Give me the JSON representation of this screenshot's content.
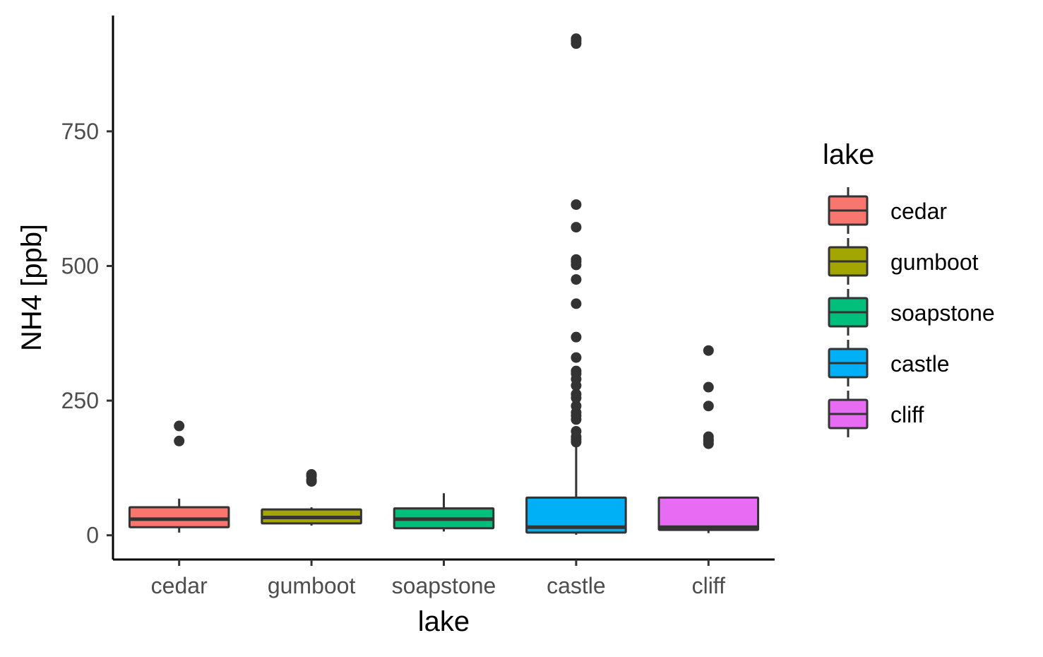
{
  "chart_data": {
    "type": "boxplot",
    "xlabel": "lake",
    "ylabel": "NH4 [ppb]",
    "ylim": [
      -45,
      965
    ],
    "y_ticks": [
      0,
      250,
      500,
      750
    ],
    "y_tick_labels": [
      "0",
      "250",
      "500",
      "750"
    ],
    "grid": false,
    "legend": {
      "title": "lake",
      "position": "right"
    },
    "categories": [
      "cedar",
      "gumboot",
      "soapstone",
      "castle",
      "cliff"
    ],
    "series": [
      {
        "name": "cedar",
        "color": "#F8766D",
        "whisker_low": 5,
        "q1": 15,
        "median": 30,
        "q3": 52,
        "whisker_high": 68,
        "outliers": [
          175,
          203
        ]
      },
      {
        "name": "gumboot",
        "color": "#A3A500",
        "whisker_low": 18,
        "q1": 22,
        "median": 33,
        "q3": 48,
        "whisker_high": 52,
        "outliers": [
          100,
          103,
          110,
          113
        ]
      },
      {
        "name": "soapstone",
        "color": "#00BF7D",
        "whisker_low": 7,
        "q1": 13,
        "median": 30,
        "q3": 50,
        "whisker_high": 78,
        "outliers": []
      },
      {
        "name": "castle",
        "color": "#00B0F6",
        "whisker_low": 1,
        "q1": 5,
        "median": 15,
        "q3": 70,
        "whisker_high": 170,
        "outliers": [
          173,
          178,
          183,
          193,
          215,
          222,
          228,
          240,
          255,
          262,
          278,
          290,
          300,
          305,
          330,
          368,
          430,
          475,
          502,
          508,
          512,
          572,
          614,
          913,
          918,
          922
        ]
      },
      {
        "name": "cliff",
        "color": "#E76BF3",
        "whisker_low": 4,
        "q1": 10,
        "median": 15,
        "q3": 70,
        "whisker_high": 70,
        "outliers": [
          170,
          175,
          178,
          183,
          240,
          275,
          343
        ]
      }
    ]
  }
}
